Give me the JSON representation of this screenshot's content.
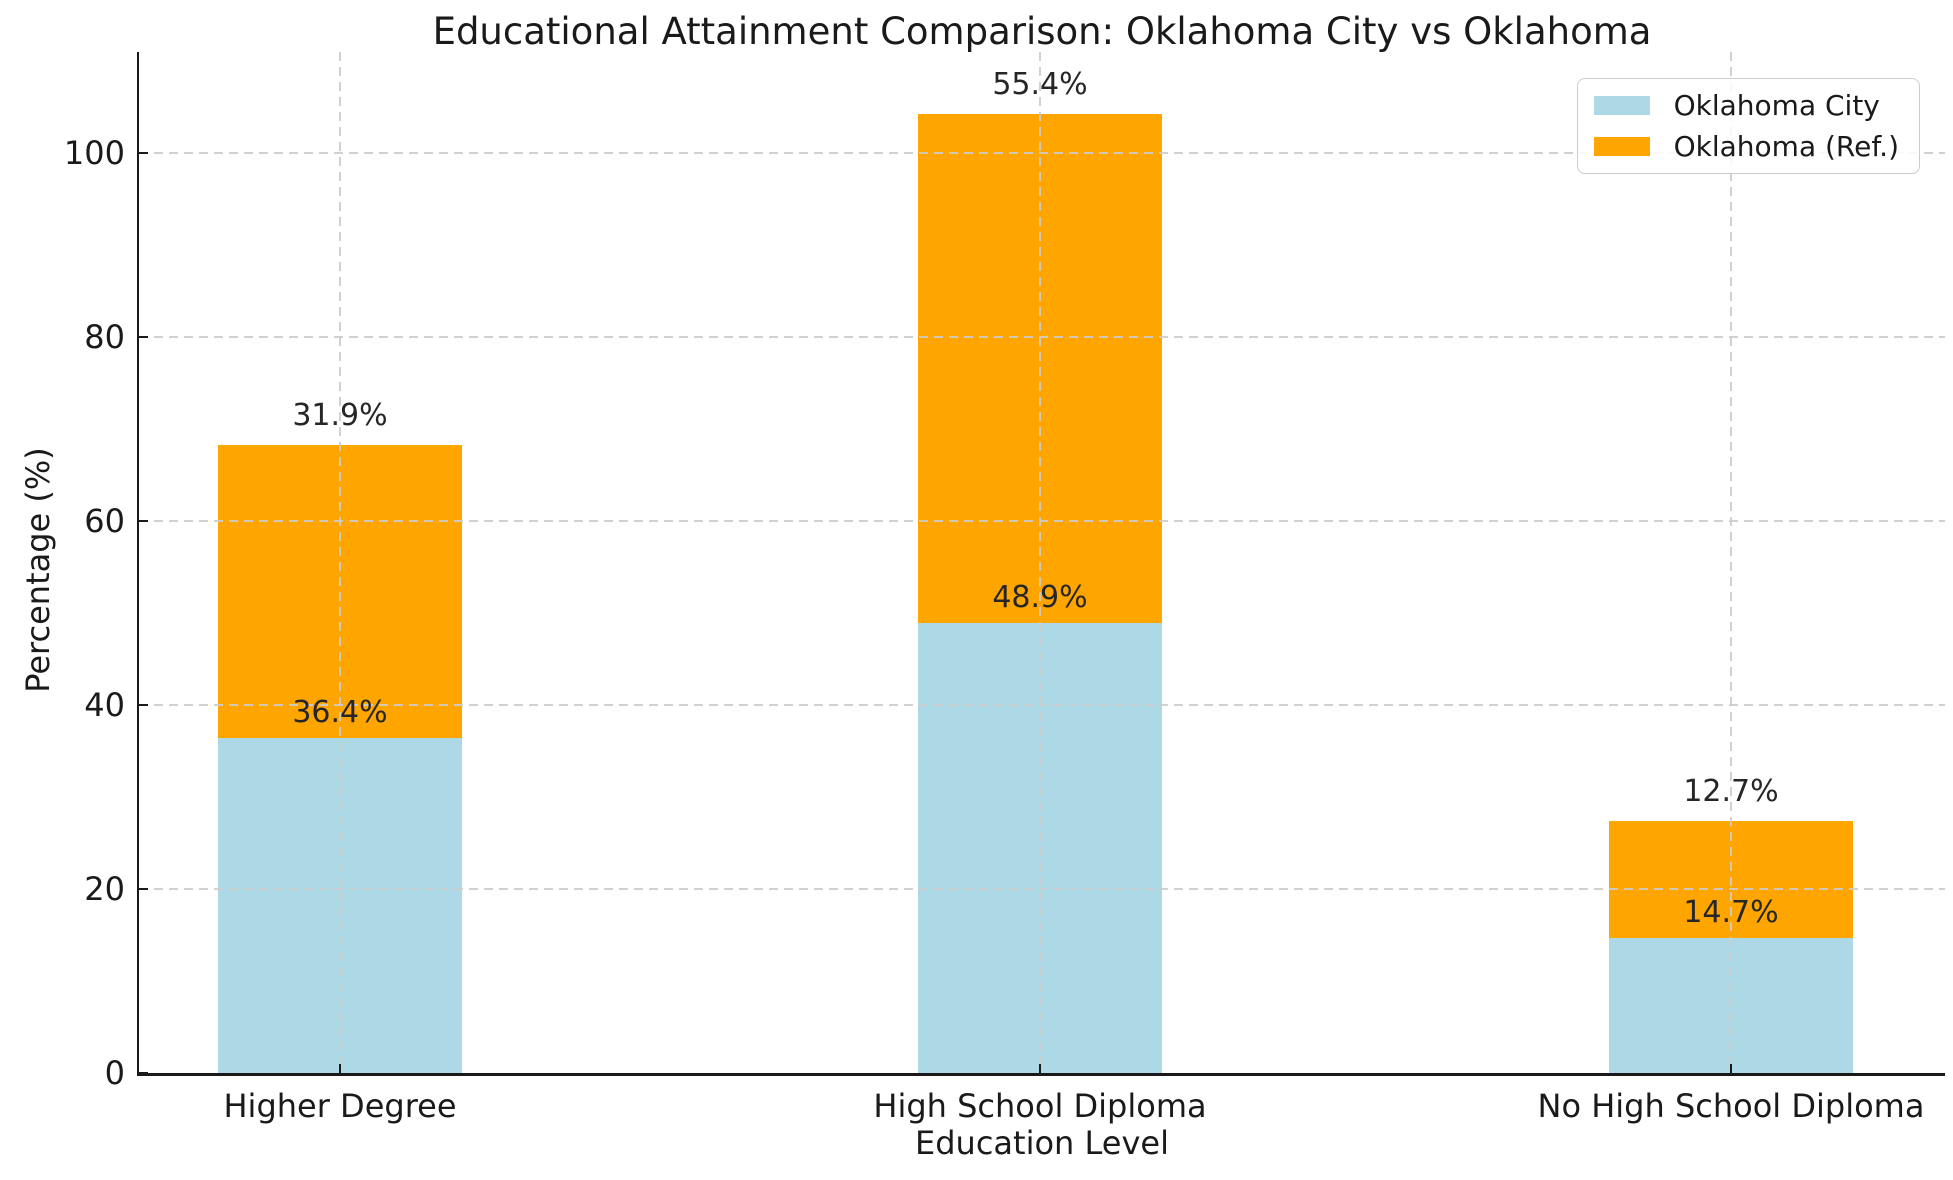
{
  "chart_data": {
    "type": "bar",
    "stacked": true,
    "title": "Educational Attainment Comparison: Oklahoma City vs Oklahoma",
    "xlabel": "Education Level",
    "ylabel": "Percentage (%)",
    "categories": [
      "Higher Degree",
      "High School Diploma",
      "No High School Diploma"
    ],
    "series": [
      {
        "name": "Oklahoma City",
        "color": "#ADD8E6",
        "values": [
          36.4,
          48.9,
          14.7
        ],
        "labels": [
          "36.4%",
          "48.9%",
          "14.7%"
        ]
      },
      {
        "name": "Oklahoma (Ref.)",
        "color": "#FFA500",
        "values": [
          31.9,
          55.4,
          12.7
        ],
        "labels": [
          "31.9%",
          "55.4%",
          "12.7%"
        ]
      }
    ],
    "yticks": [
      0,
      20,
      40,
      60,
      80,
      100
    ],
    "ylim": [
      0,
      111
    ],
    "grid": true,
    "grid_style": "dashed",
    "grid_color": "#cccccc",
    "grid_over_bars": true,
    "legend_position": "upper right",
    "legend_entries": [
      "Oklahoma City",
      "Oklahoma (Ref.)"
    ]
  }
}
